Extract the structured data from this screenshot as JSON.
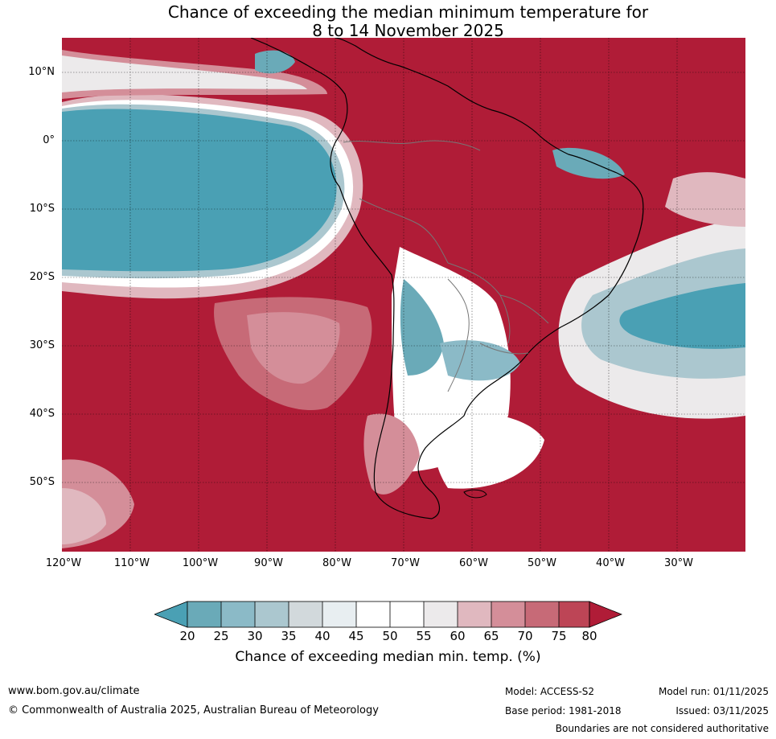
{
  "title_line1": "Chance of exceeding the median minimum temperature for",
  "title_line2": "8 to 14 November 2025",
  "map": {
    "lat_labels": [
      "10°N",
      "0°",
      "10°S",
      "20°S",
      "30°S",
      "40°S",
      "50°S"
    ],
    "lon_labels": [
      "120°W",
      "110°W",
      "100°W",
      "90°W",
      "80°W",
      "70°W",
      "60°W",
      "50°W",
      "40°W",
      "30°W"
    ],
    "lat_range": [
      -60,
      15
    ],
    "lon_range": [
      -120,
      -20
    ]
  },
  "legend": {
    "ticks": [
      "20",
      "25",
      "30",
      "35",
      "40",
      "45",
      "50",
      "55",
      "60",
      "65",
      "70",
      "75",
      "80"
    ],
    "label": "Chance of exceeding median min. temp. (%)",
    "colors": {
      "below_20": "#4aa0b4",
      "20_25": "#6aaab8",
      "25_30": "#8bbac7",
      "30_35": "#abc7cf",
      "35_40": "#d2d9dc",
      "40_45": "#e8eef1",
      "45_50": "#ffffff",
      "50_55": "#ffffff",
      "55_60": "#eceaeb",
      "60_65": "#e0b8bf",
      "65_70": "#d48e99",
      "70_75": "#c76a77",
      "75_80": "#bd4556",
      "above_80": "#b01c37"
    }
  },
  "footer": {
    "website": "www.bom.gov.au/climate",
    "copyright": "© Commonwealth of Australia 2025, Australian Bureau of Meteorology",
    "model": "Model: ACCESS-S2",
    "base_period": "Base period: 1981-2018",
    "model_run": "Model run: 01/11/2025",
    "issued": "Issued: 03/11/2025",
    "disclaimer": "Boundaries are not considered authoritative"
  }
}
